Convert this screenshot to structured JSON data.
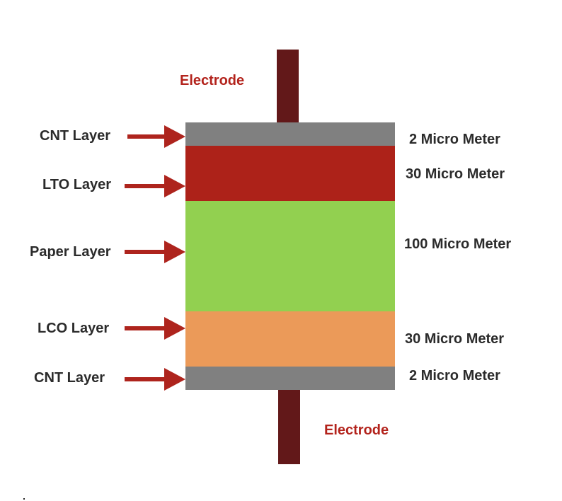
{
  "electrodes": {
    "top_label": "Electrode",
    "bottom_label": "Electrode",
    "color": "#621819"
  },
  "layers": [
    {
      "name": "CNT Layer",
      "thickness": "2 Micro Meter",
      "color": "#808080"
    },
    {
      "name": "LTO Layer",
      "thickness": "30 Micro Meter",
      "color": "#ad2219"
    },
    {
      "name": "Paper Layer",
      "thickness": "100 Micro Meter",
      "color": "#92d050"
    },
    {
      "name": "LCO Layer",
      "thickness": "30 Micro Meter",
      "color": "#eb9a59"
    },
    {
      "name": "CNT Layer",
      "thickness": "2 Micro Meter",
      "color": "#808080"
    }
  ],
  "arrow_color": "#ae241d"
}
